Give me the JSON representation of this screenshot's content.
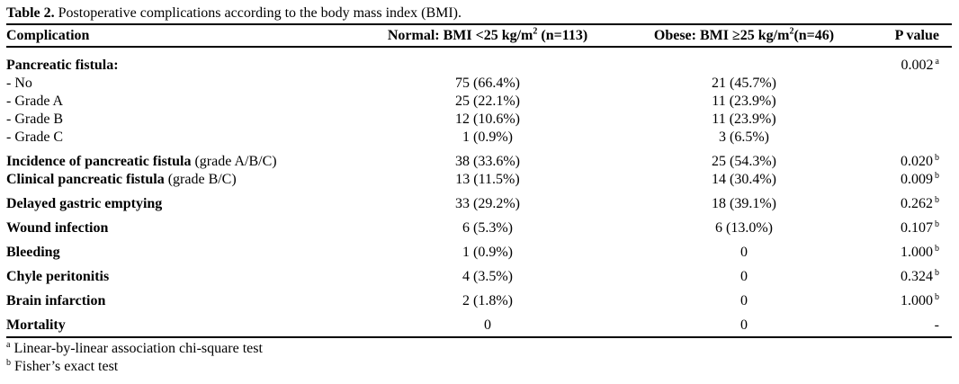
{
  "caption": {
    "label": "Table 2.",
    "text": " Postoperative complications according to the body mass index (BMI)."
  },
  "header": {
    "complication": "Complication",
    "normal": {
      "pre": "Normal: BMI <25 kg/m",
      "sup": "2",
      "post": " (n=113)"
    },
    "obese": {
      "pre": "Obese: BMI ≥25 kg/m",
      "sup": "2",
      "post": "(n=46)"
    },
    "p": "P value"
  },
  "rows": [
    {
      "label": "Pancreatic fistula:",
      "bold": true,
      "normal": "",
      "obese": "",
      "p": "0.002",
      "p_sup": "a"
    },
    {
      "label": "- No",
      "bold": false,
      "normal": "75 (66.4%)",
      "obese": "21 (45.7%)",
      "p": ""
    },
    {
      "label": "- Grade A",
      "bold": false,
      "normal": "25 (22.1%)",
      "obese": "11 (23.9%)",
      "p": ""
    },
    {
      "label": "- Grade B",
      "bold": false,
      "normal": "12 (10.6%)",
      "obese": "11 (23.9%)",
      "p": ""
    },
    {
      "label": "- Grade C",
      "bold": false,
      "normal": "1 (0.9%)",
      "obese": "3 (6.5%)",
      "p": ""
    },
    {
      "label": "Incidence of pancreatic fistula",
      "label_suffix": " (grade A/B/C)",
      "bold": true,
      "normal": "38 (33.6%)",
      "obese": "25 (54.3%)",
      "p": "0.020",
      "p_sup": "b",
      "group": true
    },
    {
      "label": "Clinical pancreatic fistula",
      "label_suffix": " (grade B/C)",
      "bold": true,
      "normal": "13 (11.5%)",
      "obese": "14 (30.4%)",
      "p": "0.009",
      "p_sup": "b"
    },
    {
      "label": "Delayed gastric emptying",
      "bold": true,
      "normal": "33 (29.2%)",
      "obese": "18 (39.1%)",
      "p": "0.262",
      "p_sup": "b",
      "group": true
    },
    {
      "label": "Wound infection",
      "bold": true,
      "normal": "6 (5.3%)",
      "obese": "6 (13.0%)",
      "p": "0.107",
      "p_sup": "b",
      "group": true
    },
    {
      "label": "Bleeding",
      "bold": true,
      "normal": "1 (0.9%)",
      "obese": "0",
      "p": "1.000",
      "p_sup": "b",
      "group": true
    },
    {
      "label": "Chyle peritonitis",
      "bold": true,
      "normal": "4 (3.5%)",
      "obese": "0",
      "p": "0.324",
      "p_sup": "b",
      "group": true
    },
    {
      "label": "Brain infarction",
      "bold": true,
      "normal": "2 (1.8%)",
      "obese": "0",
      "p": "1.000",
      "p_sup": "b",
      "group": true
    },
    {
      "label": "Mortality",
      "bold": true,
      "normal": "0",
      "obese": "0",
      "p": "-",
      "group": true
    }
  ],
  "footnotes": [
    {
      "sup": "a",
      "text": "Linear-by-linear association chi-square test"
    },
    {
      "sup": "b",
      "text": "Fisher’s exact test"
    }
  ]
}
